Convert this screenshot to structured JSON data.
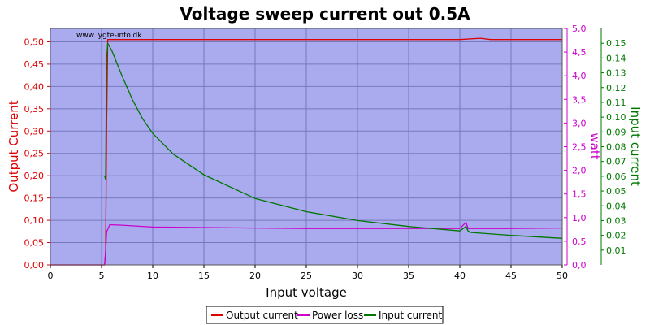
{
  "chart_data": {
    "type": "line",
    "title": "Voltage sweep current out 0.5A",
    "watermark": "www.lygte-info.dk",
    "xlabel": "Input voltage",
    "ylabel_left": "Output Current",
    "ylabel_right1": "watt",
    "ylabel_right2": "Input current",
    "xlim": [
      0,
      50
    ],
    "ylim_left": [
      0,
      0.53
    ],
    "ylim_right1": [
      0,
      5.0
    ],
    "ylim_right2": [
      0,
      0.16
    ],
    "x_ticks": [
      "0",
      "5",
      "10",
      "15",
      "20",
      "25",
      "30",
      "35",
      "40",
      "45",
      "50"
    ],
    "left_ticks": [
      "0,00",
      "0,05",
      "0,10",
      "0,15",
      "0,20",
      "0,25",
      "0,30",
      "0,35",
      "0,40",
      "0,45",
      "0,50"
    ],
    "right1_ticks": [
      "0,0",
      "0,5",
      "1,0",
      "1,5",
      "2,0",
      "2,5",
      "3,0",
      "3,5",
      "4,0",
      "4,5",
      "5,0"
    ],
    "right2_ticks": [
      "0,01",
      "0,02",
      "0,03",
      "0,04",
      "0,05",
      "0,06",
      "0,07",
      "0,08",
      "0,09",
      "0,10",
      "0,11",
      "0,12",
      "0,13",
      "0,14",
      "0,15"
    ],
    "grid": true,
    "legend_position": "bottom",
    "colors": {
      "plot_bg": "#aaaaee",
      "output_current": "#dd0000",
      "power_loss": "#cc00cc",
      "input_current": "#007700"
    },
    "series": [
      {
        "name": "Output current",
        "axis": "left",
        "x": [
          0,
          5.3,
          5.4,
          5.5,
          5.6,
          10,
          20,
          30,
          40,
          42,
          43,
          50
        ],
        "y": [
          0,
          0,
          0.03,
          0.32,
          0.505,
          0.505,
          0.505,
          0.505,
          0.505,
          0.508,
          0.505,
          0.505
        ]
      },
      {
        "name": "Power loss",
        "axis": "right1",
        "x": [
          0,
          5.3,
          5.4,
          5.5,
          5.8,
          7,
          10,
          15,
          20,
          25,
          30,
          35,
          40,
          40.6,
          40.8,
          41,
          45,
          50
        ],
        "y": [
          0,
          0,
          0.3,
          0.7,
          0.85,
          0.84,
          0.8,
          0.79,
          0.78,
          0.77,
          0.77,
          0.77,
          0.77,
          0.9,
          0.77,
          0.77,
          0.77,
          0.78
        ]
      },
      {
        "name": "Input current",
        "axis": "right2",
        "x": [
          5.3,
          5.4,
          5.5,
          5.6,
          6,
          7,
          8,
          9,
          10,
          12,
          15,
          20,
          25,
          30,
          35,
          40,
          40.6,
          40.8,
          41,
          45,
          50
        ],
        "y": [
          0.06,
          0.058,
          0.14,
          0.15,
          0.145,
          0.128,
          0.112,
          0.099,
          0.089,
          0.075,
          0.061,
          0.045,
          0.036,
          0.03,
          0.026,
          0.023,
          0.026,
          0.023,
          0.022,
          0.02,
          0.018
        ]
      }
    ]
  }
}
